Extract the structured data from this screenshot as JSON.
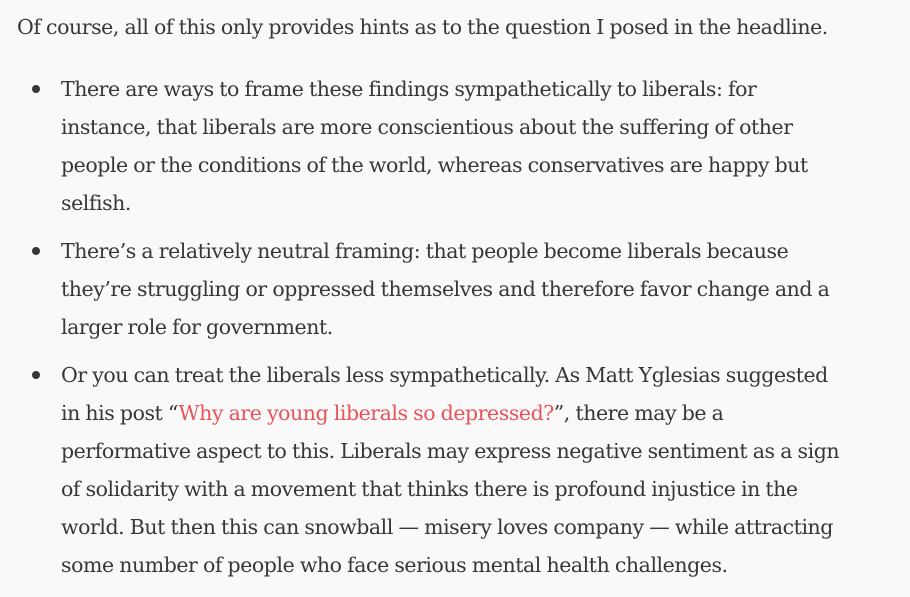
{
  "intro": "Of course, all of this only provides hints as to the question I posed in the headline.",
  "bullets": [
    {
      "lines": [
        "There are ways to frame these findings sympathetically to liberals: for",
        "instance, that liberals are more conscientious about the suffering of other",
        "people or the conditions of the world, whereas conservatives are happy but",
        "selfish."
      ]
    },
    {
      "lines": [
        "There’s a relatively neutral framing: that people become liberals because",
        "they’re struggling or oppressed themselves and therefore favor change and a",
        "larger role for government."
      ]
    },
    {
      "line1": "Or you can treat the liberals less sympathetically. As Matt Yglesias suggested",
      "line2_before": "in his post “",
      "link_text": "Why are young liberals so depressed?",
      "line2_after": "”, there may be a",
      "lines_rest": [
        "performative aspect to this. Liberals may express negative sentiment as a sign",
        "of solidarity with a movement that thinks there is profound injustice in the",
        "world. But then this can snowball — misery loves company — while attracting",
        "some number of people who face serious mental health challenges."
      ]
    }
  ],
  "colors": {
    "text": "#363737",
    "link": "#e8535a",
    "background": "#f9f9f9"
  }
}
